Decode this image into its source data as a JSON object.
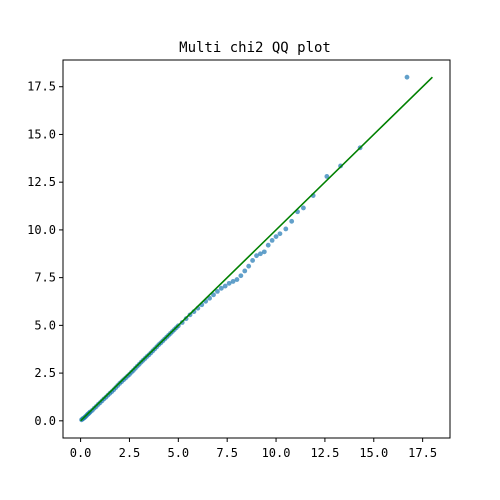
{
  "chart_data": {
    "type": "scatter",
    "title": "Multi chi2 QQ plot",
    "xlabel": "",
    "ylabel": "",
    "xlim": [
      -0.9,
      18.9
    ],
    "ylim": [
      -0.9,
      18.9
    ],
    "xticks": [
      0.0,
      2.5,
      5.0,
      7.5,
      10.0,
      12.5,
      15.0,
      17.5
    ],
    "yticks": [
      0.0,
      2.5,
      5.0,
      7.5,
      10.0,
      12.5,
      15.0,
      17.5
    ],
    "xtick_labels": [
      "0.0",
      "2.5",
      "5.0",
      "7.5",
      "10.0",
      "12.5",
      "15.0",
      "17.5"
    ],
    "ytick_labels": [
      "0.0",
      "2.5",
      "5.0",
      "7.5",
      "10.0",
      "12.5",
      "15.0",
      "17.5"
    ],
    "grid": false,
    "series": [
      {
        "kind": "points",
        "color": "#1f77b4",
        "x": [
          0.05,
          0.1,
          0.15,
          0.2,
          0.25,
          0.3,
          0.35,
          0.4,
          0.45,
          0.5,
          0.6,
          0.7,
          0.8,
          0.9,
          1.0,
          1.1,
          1.2,
          1.3,
          1.4,
          1.5,
          1.6,
          1.7,
          1.8,
          1.9,
          2.0,
          2.1,
          2.2,
          2.3,
          2.4,
          2.5,
          2.6,
          2.7,
          2.8,
          2.9,
          3.0,
          3.1,
          3.2,
          3.3,
          3.4,
          3.5,
          3.6,
          3.7,
          3.8,
          3.9,
          4.0,
          4.1,
          4.2,
          4.3,
          4.4,
          4.5,
          4.6,
          4.7,
          4.8,
          4.9,
          5.0,
          5.2,
          5.4,
          5.6,
          5.8,
          6.0,
          6.2,
          6.4,
          6.6,
          6.8,
          7.0,
          7.2,
          7.4,
          7.6,
          7.8,
          8.0,
          8.2,
          8.4,
          8.6,
          8.8,
          9.0,
          9.2,
          9.4,
          9.6,
          9.8,
          10.0,
          10.2,
          10.5,
          10.8,
          11.1,
          11.4,
          11.9,
          12.6,
          13.3,
          14.3,
          16.7
        ],
        "y": [
          0.05,
          0.1,
          0.13,
          0.17,
          0.22,
          0.27,
          0.33,
          0.37,
          0.42,
          0.47,
          0.55,
          0.66,
          0.75,
          0.86,
          0.95,
          1.05,
          1.15,
          1.24,
          1.34,
          1.44,
          1.53,
          1.63,
          1.74,
          1.85,
          1.96,
          2.05,
          2.15,
          2.24,
          2.34,
          2.43,
          2.54,
          2.64,
          2.75,
          2.86,
          2.96,
          3.07,
          3.17,
          3.27,
          3.37,
          3.46,
          3.56,
          3.67,
          3.77,
          3.88,
          3.99,
          4.08,
          4.18,
          4.28,
          4.38,
          4.48,
          4.58,
          4.68,
          4.78,
          4.88,
          4.98,
          5.15,
          5.35,
          5.55,
          5.72,
          5.9,
          6.08,
          6.26,
          6.42,
          6.6,
          6.78,
          6.94,
          7.06,
          7.2,
          7.3,
          7.4,
          7.6,
          7.85,
          8.1,
          8.4,
          8.65,
          8.75,
          8.85,
          9.2,
          9.45,
          9.65,
          9.8,
          10.05,
          10.45,
          10.95,
          11.15,
          11.8,
          12.8,
          13.35,
          14.3,
          18.0
        ]
      },
      {
        "kind": "line",
        "color": "#008000",
        "x": [
          0.0,
          18.0
        ],
        "y": [
          0.0,
          18.0
        ]
      }
    ]
  }
}
